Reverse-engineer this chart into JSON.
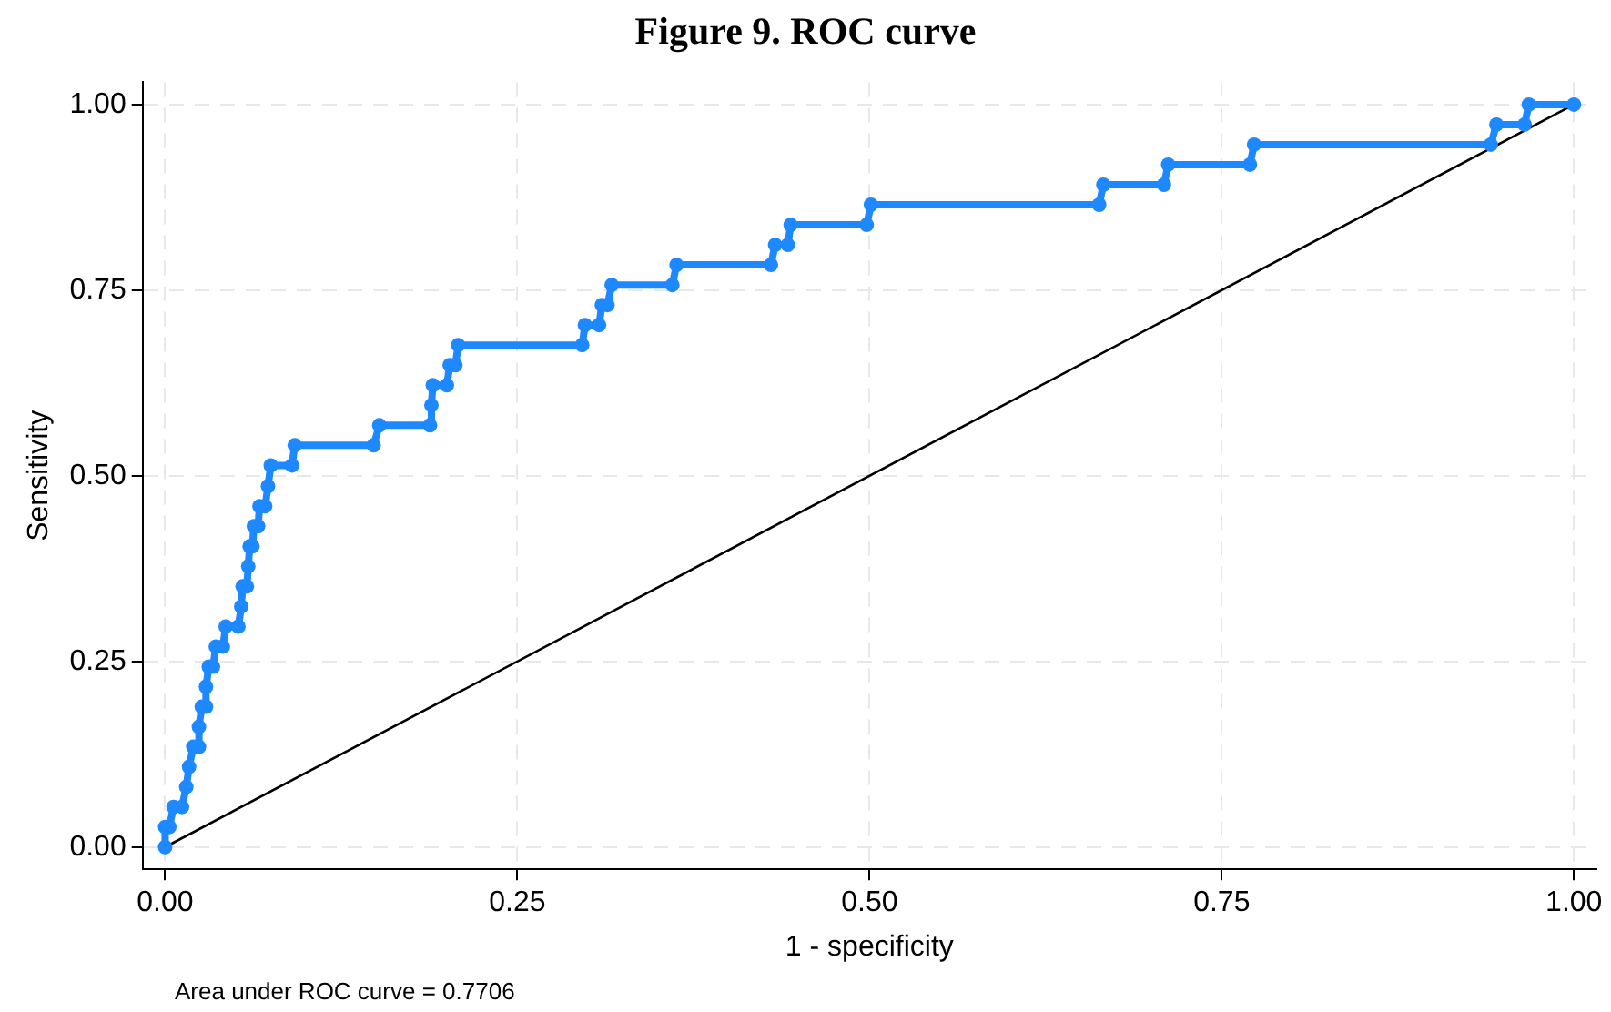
{
  "chart_data": {
    "type": "line",
    "title": "Figure 9. ROC curve",
    "xlabel": "1 - specificity",
    "ylabel": "Sensitivity",
    "annotations": [
      "Area under ROC curve = 0.7706"
    ],
    "xlim": [
      -0.016,
      1.016
    ],
    "ylim": [
      -0.03,
      1.03
    ],
    "xticks": [
      {
        "value": 0,
        "label": "0.00"
      },
      {
        "value": 0.25,
        "label": "0.25"
      },
      {
        "value": 0.5,
        "label": "0.50"
      },
      {
        "value": 0.75,
        "label": "0.75"
      },
      {
        "value": 1,
        "label": "1.00"
      }
    ],
    "yticks": [
      {
        "value": 0,
        "label": "0.00"
      },
      {
        "value": 0.25,
        "label": "0.25"
      },
      {
        "value": 0.5,
        "label": "0.50"
      },
      {
        "value": 0.75,
        "label": "0.75"
      },
      {
        "value": 1,
        "label": "1.00"
      }
    ],
    "grid": true,
    "legend": false,
    "marker": "circle",
    "line_style": "solid",
    "series": [
      {
        "color": "#1e88ff",
        "x": [
          0,
          0,
          0.003,
          0.006,
          0.012,
          0.015,
          0.017,
          0.02,
          0.024,
          0.024,
          0.026,
          0.029,
          0.029,
          0.031,
          0.034,
          0.036,
          0.041,
          0.043,
          0.052,
          0.054,
          0.055,
          0.058,
          0.059,
          0.06,
          0.062,
          0.063,
          0.066,
          0.067,
          0.071,
          0.073,
          0.075,
          0.09,
          0.092,
          0.148,
          0.152,
          0.188,
          0.189,
          0.19,
          0.2,
          0.202,
          0.206,
          0.208,
          0.296,
          0.298,
          0.308,
          0.31,
          0.314,
          0.317,
          0.36,
          0.363,
          0.43,
          0.433,
          0.442,
          0.444,
          0.498,
          0.501,
          0.663,
          0.666,
          0.709,
          0.712,
          0.77,
          0.773,
          0.941,
          0.945,
          0.965,
          0.968,
          1
        ],
        "values": [
          0,
          0.027,
          0.027,
          0.054,
          0.054,
          0.081,
          0.108,
          0.135,
          0.135,
          0.162,
          0.189,
          0.189,
          0.216,
          0.243,
          0.243,
          0.27,
          0.27,
          0.297,
          0.297,
          0.324,
          0.351,
          0.351,
          0.378,
          0.405,
          0.405,
          0.432,
          0.432,
          0.459,
          0.459,
          0.486,
          0.514,
          0.514,
          0.541,
          0.541,
          0.568,
          0.568,
          0.595,
          0.622,
          0.622,
          0.649,
          0.649,
          0.676,
          0.676,
          0.703,
          0.703,
          0.73,
          0.73,
          0.757,
          0.757,
          0.784,
          0.784,
          0.811,
          0.811,
          0.838,
          0.838,
          0.865,
          0.865,
          0.892,
          0.892,
          0.919,
          0.919,
          0.946,
          0.946,
          0.973,
          0.973,
          1,
          1
        ]
      },
      {
        "color": "#000000",
        "marker": "none",
        "x": [
          0,
          1
        ],
        "values": [
          0,
          1
        ]
      }
    ]
  }
}
